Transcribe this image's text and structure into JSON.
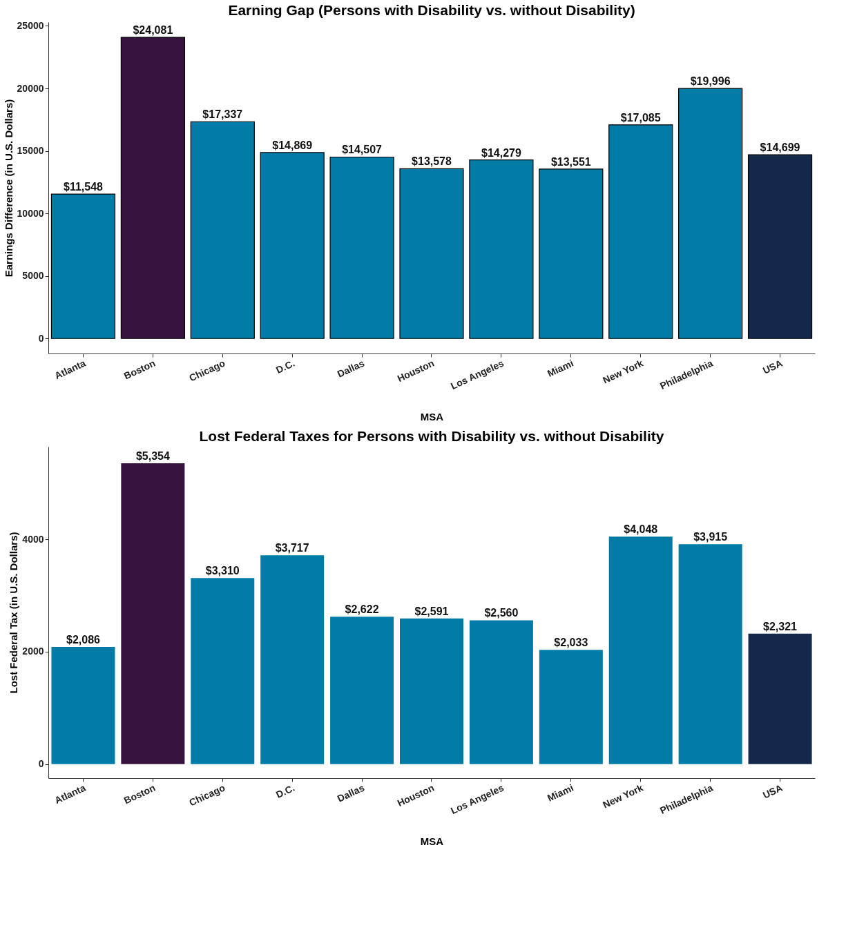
{
  "chart_data": [
    {
      "type": "bar",
      "title": "Earning Gap (Persons with Disability vs. without Disability)",
      "xlabel": "MSA",
      "ylabel": "Earnings Difference (in U.S. Dollars)",
      "categories": [
        "Atlanta",
        "Boston",
        "Chicago",
        "D.C.",
        "Dallas",
        "Houston",
        "Los Angeles",
        "Miami",
        "New York",
        "Philadelphia",
        "USA"
      ],
      "values": [
        11548,
        24081,
        17337,
        14869,
        14507,
        13578,
        14279,
        13551,
        17085,
        19996,
        14699
      ],
      "colors": [
        "#027ca6",
        "#361440",
        "#027ca6",
        "#027ca6",
        "#027ca6",
        "#027ca6",
        "#027ca6",
        "#027ca6",
        "#027ca6",
        "#027ca6",
        "#13284b"
      ],
      "value_labels": [
        "$11,548",
        "$24,081",
        "$17,337",
        "$14,869",
        "$14,507",
        "$13,578",
        "$14,279",
        "$13,551",
        "$17,085",
        "$19,996",
        "$14,699"
      ],
      "ylim": [
        -1200,
        25300
      ],
      "yticks": [
        0,
        5000,
        10000,
        15000,
        20000,
        25000
      ],
      "grid": false
    },
    {
      "type": "bar",
      "title": "Lost Federal Taxes for Persons with Disability vs. without Disability",
      "xlabel": "MSA",
      "ylabel": "Lost Federal Tax (in U.S. Dollars)",
      "categories": [
        "Atlanta",
        "Boston",
        "Chicago",
        "D.C.",
        "Dallas",
        "Houston",
        "Los Angeles",
        "Miami",
        "New York",
        "Philadelphia",
        "USA"
      ],
      "values": [
        2086,
        5354,
        3310,
        3717,
        2622,
        2591,
        2560,
        2033,
        4048,
        3915,
        2321
      ],
      "colors": [
        "#027ca6",
        "#361440",
        "#027ca6",
        "#027ca6",
        "#027ca6",
        "#027ca6",
        "#027ca6",
        "#027ca6",
        "#027ca6",
        "#027ca6",
        "#13284b"
      ],
      "value_labels": [
        "$2,086",
        "$5,354",
        "$3,310",
        "$3,717",
        "$2,622",
        "$2,591",
        "$2,560",
        "$2,033",
        "$4,048",
        "$3,915",
        "$2,321"
      ],
      "ylim": [
        -250,
        5650
      ],
      "yticks": [
        0,
        2000,
        4000
      ],
      "grid": false
    }
  ]
}
